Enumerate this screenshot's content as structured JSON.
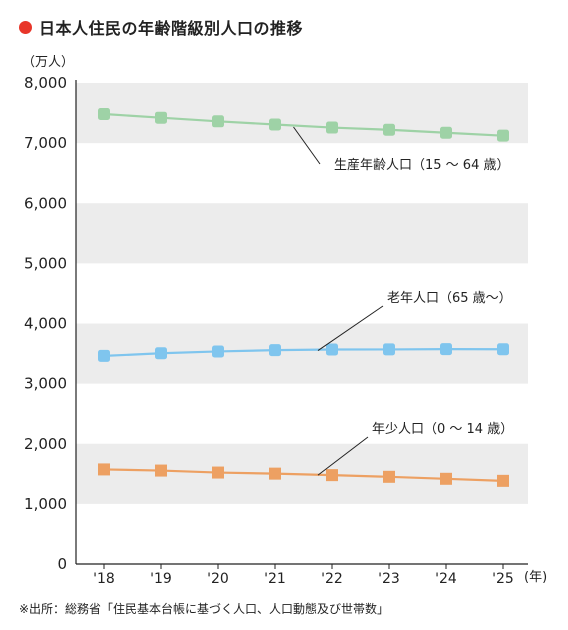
{
  "title": "日本人住民の年齢階級別人口の推移",
  "source": "※出所：総務省「住民基本台帳に基づく人口、人口動態及び世帯数」",
  "colors": {
    "title_dot": "#e8362a",
    "band": "#ececec",
    "axis": "#222222",
    "working_age": "#9ed2a6",
    "elderly": "#7fc5ee",
    "youth": "#eda062"
  },
  "chart_data": {
    "type": "line",
    "y_unit_label": "（万人）",
    "x_unit_label": "(年)",
    "ylim": [
      0,
      8000
    ],
    "y_ticks": [
      "0",
      "1,000",
      "2,000",
      "3,000",
      "4,000",
      "5,000",
      "6,000",
      "7,000",
      "8,000"
    ],
    "y_tick_values": [
      0,
      1000,
      2000,
      3000,
      4000,
      5000,
      6000,
      7000,
      8000
    ],
    "x": [
      "'18",
      "'19",
      "'20",
      "'21",
      "'22",
      "'23",
      "'24",
      "'25"
    ],
    "grid": "alternating horizontal bands",
    "legend": "inline labels",
    "series": [
      {
        "name": "生産年齢人口（15 ～ 64 歳）",
        "marker": "circle",
        "values": [
          7484,
          7423,
          7363,
          7310,
          7259,
          7222,
          7173,
          7124
        ]
      },
      {
        "name": "老年人口（65 歳～）",
        "marker": "circle",
        "values": [
          3461,
          3505,
          3535,
          3557,
          3567,
          3569,
          3574,
          3572
        ]
      },
      {
        "name": "年少人口（0 ～ 14 歳）",
        "marker": "square",
        "values": [
          1573,
          1554,
          1521,
          1503,
          1478,
          1450,
          1417,
          1383
        ]
      }
    ]
  }
}
